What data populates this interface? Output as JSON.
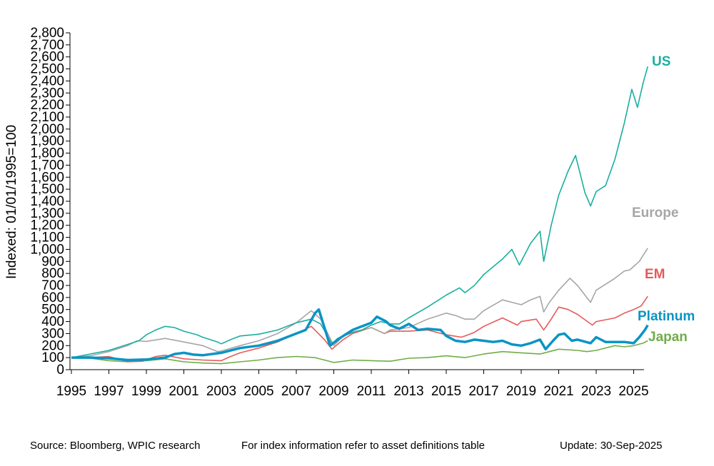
{
  "chart_data": {
    "type": "line",
    "title": "",
    "ylabel": "Indexed: 01/01/1995=100",
    "xlabel": "",
    "xlim": [
      1995,
      2025.75
    ],
    "ylim": [
      0,
      2800
    ],
    "y_ticks": [
      0,
      100,
      200,
      300,
      400,
      500,
      600,
      700,
      800,
      900,
      1000,
      1100,
      1200,
      1300,
      1400,
      1500,
      1600,
      1700,
      1800,
      1900,
      2000,
      2100,
      2200,
      2300,
      2400,
      2500,
      2600,
      2700,
      2800
    ],
    "y_tick_labels": [
      "0",
      "100",
      "200",
      "300",
      "400",
      "500",
      "600",
      "700",
      "800",
      "900",
      "1,000",
      "1,100",
      "1,200",
      "1,300",
      "1,400",
      "1,500",
      "1,600",
      "1,700",
      "1,800",
      "1,900",
      "2,000",
      "2,100",
      "2,200",
      "2,300",
      "2,400",
      "2,500",
      "2,600",
      "2,700",
      "2,800"
    ],
    "x_ticks": [
      1995,
      1997,
      1999,
      2001,
      2003,
      2005,
      2007,
      2009,
      2011,
      2013,
      2015,
      2017,
      2019,
      2021,
      2023,
      2025
    ],
    "x_tick_labels": [
      "1995",
      "1997",
      "1999",
      "2001",
      "2003",
      "2005",
      "2007",
      "2009",
      "2011",
      "2013",
      "2015",
      "2017",
      "2019",
      "2021",
      "2023",
      "2025"
    ],
    "grid": false,
    "legend": "inline labels at series ends",
    "series": [
      {
        "name": "US",
        "color": "#1aaea1",
        "points": [
          [
            1995,
            100
          ],
          [
            1996,
            130
          ],
          [
            1997,
            160
          ],
          [
            1998,
            210
          ],
          [
            1998.6,
            240
          ],
          [
            1999,
            290
          ],
          [
            1999.5,
            330
          ],
          [
            2000,
            360
          ],
          [
            2000.5,
            350
          ],
          [
            2001,
            320
          ],
          [
            2001.7,
            290
          ],
          [
            2002,
            270
          ],
          [
            2002.8,
            230
          ],
          [
            2003,
            215
          ],
          [
            2003.5,
            250
          ],
          [
            2004,
            280
          ],
          [
            2005,
            295
          ],
          [
            2006,
            330
          ],
          [
            2007,
            390
          ],
          [
            2007.8,
            420
          ],
          [
            2008.3,
            380
          ],
          [
            2008.9,
            215
          ],
          [
            2009.2,
            260
          ],
          [
            2010,
            310
          ],
          [
            2010.5,
            330
          ],
          [
            2011,
            370
          ],
          [
            2011.5,
            400
          ],
          [
            2012,
            380
          ],
          [
            2012.5,
            380
          ],
          [
            2013,
            430
          ],
          [
            2014,
            520
          ],
          [
            2015,
            620
          ],
          [
            2015.7,
            680
          ],
          [
            2016,
            640
          ],
          [
            2016.5,
            700
          ],
          [
            2017,
            790
          ],
          [
            2018,
            920
          ],
          [
            2018.5,
            1000
          ],
          [
            2018.9,
            870
          ],
          [
            2019.5,
            1050
          ],
          [
            2020,
            1150
          ],
          [
            2020.2,
            900
          ],
          [
            2020.6,
            1200
          ],
          [
            2021,
            1450
          ],
          [
            2021.5,
            1650
          ],
          [
            2021.9,
            1780
          ],
          [
            2022.4,
            1470
          ],
          [
            2022.7,
            1360
          ],
          [
            2023,
            1480
          ],
          [
            2023.5,
            1530
          ],
          [
            2024,
            1750
          ],
          [
            2024.5,
            2050
          ],
          [
            2024.9,
            2330
          ],
          [
            2025.2,
            2180
          ],
          [
            2025.5,
            2380
          ],
          [
            2025.75,
            2520
          ]
        ]
      },
      {
        "name": "Europe",
        "color": "#a6a6a6",
        "points": [
          [
            1995,
            100
          ],
          [
            1996,
            115
          ],
          [
            1997,
            150
          ],
          [
            1998,
            200
          ],
          [
            1998.5,
            240
          ],
          [
            1999,
            235
          ],
          [
            2000,
            260
          ],
          [
            2001,
            230
          ],
          [
            2002,
            200
          ],
          [
            2002.8,
            150
          ],
          [
            2003,
            155
          ],
          [
            2004,
            200
          ],
          [
            2005,
            240
          ],
          [
            2006,
            300
          ],
          [
            2007,
            390
          ],
          [
            2007.8,
            490
          ],
          [
            2008.3,
            420
          ],
          [
            2009,
            200
          ],
          [
            2009.5,
            280
          ],
          [
            2010,
            310
          ],
          [
            2011,
            350
          ],
          [
            2011.7,
            300
          ],
          [
            2012,
            330
          ],
          [
            2013,
            350
          ],
          [
            2014,
            420
          ],
          [
            2015,
            470
          ],
          [
            2015.5,
            450
          ],
          [
            2016,
            420
          ],
          [
            2016.5,
            420
          ],
          [
            2017,
            490
          ],
          [
            2018,
            580
          ],
          [
            2018.5,
            560
          ],
          [
            2019,
            540
          ],
          [
            2019.5,
            580
          ],
          [
            2020,
            610
          ],
          [
            2020.2,
            480
          ],
          [
            2020.5,
            560
          ],
          [
            2021,
            660
          ],
          [
            2021.6,
            760
          ],
          [
            2022,
            700
          ],
          [
            2022.7,
            560
          ],
          [
            2023,
            660
          ],
          [
            2024,
            760
          ],
          [
            2024.5,
            820
          ],
          [
            2024.8,
            830
          ],
          [
            2025.3,
            900
          ],
          [
            2025.75,
            1010
          ]
        ]
      },
      {
        "name": "EM",
        "color": "#e65a5a",
        "points": [
          [
            1995,
            100
          ],
          [
            1996,
            100
          ],
          [
            1997,
            110
          ],
          [
            1998,
            65
          ],
          [
            1998.8,
            70
          ],
          [
            1999.5,
            110
          ],
          [
            2000,
            120
          ],
          [
            2001,
            90
          ],
          [
            2002,
            80
          ],
          [
            2003,
            75
          ],
          [
            2003.5,
            110
          ],
          [
            2004,
            140
          ],
          [
            2005,
            180
          ],
          [
            2006,
            230
          ],
          [
            2007,
            300
          ],
          [
            2007.8,
            360
          ],
          [
            2008.5,
            250
          ],
          [
            2008.9,
            170
          ],
          [
            2009.5,
            250
          ],
          [
            2010,
            300
          ],
          [
            2011,
            350
          ],
          [
            2011.7,
            300
          ],
          [
            2012,
            320
          ],
          [
            2013,
            320
          ],
          [
            2014,
            330
          ],
          [
            2015,
            290
          ],
          [
            2015.8,
            270
          ],
          [
            2016,
            280
          ],
          [
            2016.5,
            310
          ],
          [
            2017,
            360
          ],
          [
            2018,
            430
          ],
          [
            2018.8,
            370
          ],
          [
            2019,
            400
          ],
          [
            2019.8,
            420
          ],
          [
            2020.2,
            330
          ],
          [
            2020.6,
            420
          ],
          [
            2021,
            520
          ],
          [
            2021.5,
            500
          ],
          [
            2022,
            460
          ],
          [
            2022.8,
            370
          ],
          [
            2023,
            400
          ],
          [
            2024,
            430
          ],
          [
            2024.5,
            470
          ],
          [
            2025,
            500
          ],
          [
            2025.4,
            530
          ],
          [
            2025.75,
            610
          ]
        ]
      },
      {
        "name": "Platinum",
        "color": "#0a94c4",
        "points": [
          [
            1995,
            100
          ],
          [
            1996,
            100
          ],
          [
            1997,
            95
          ],
          [
            1998,
            80
          ],
          [
            1999,
            85
          ],
          [
            2000,
            100
          ],
          [
            2000.5,
            130
          ],
          [
            2001,
            140
          ],
          [
            2001.5,
            125
          ],
          [
            2002,
            120
          ],
          [
            2003,
            140
          ],
          [
            2004,
            180
          ],
          [
            2005,
            200
          ],
          [
            2006,
            240
          ],
          [
            2007,
            300
          ],
          [
            2007.5,
            330
          ],
          [
            2008,
            470
          ],
          [
            2008.2,
            500
          ],
          [
            2008.5,
            350
          ],
          [
            2008.8,
            200
          ],
          [
            2009.3,
            260
          ],
          [
            2010,
            330
          ],
          [
            2010.5,
            360
          ],
          [
            2011,
            390
          ],
          [
            2011.3,
            440
          ],
          [
            2011.8,
            400
          ],
          [
            2012,
            370
          ],
          [
            2012.5,
            340
          ],
          [
            2013,
            380
          ],
          [
            2013.5,
            330
          ],
          [
            2014,
            340
          ],
          [
            2014.7,
            330
          ],
          [
            2015,
            280
          ],
          [
            2015.5,
            240
          ],
          [
            2016,
            230
          ],
          [
            2016.5,
            250
          ],
          [
            2017,
            240
          ],
          [
            2017.5,
            230
          ],
          [
            2018,
            240
          ],
          [
            2018.5,
            210
          ],
          [
            2019,
            200
          ],
          [
            2019.5,
            220
          ],
          [
            2020,
            250
          ],
          [
            2020.3,
            170
          ],
          [
            2020.7,
            240
          ],
          [
            2021,
            290
          ],
          [
            2021.3,
            300
          ],
          [
            2021.7,
            240
          ],
          [
            2022,
            250
          ],
          [
            2022.7,
            220
          ],
          [
            2023,
            270
          ],
          [
            2023.5,
            230
          ],
          [
            2024,
            230
          ],
          [
            2024.5,
            230
          ],
          [
            2025,
            220
          ],
          [
            2025.3,
            270
          ],
          [
            2025.6,
            330
          ],
          [
            2025.75,
            370
          ]
        ]
      },
      {
        "name": "Japan",
        "color": "#70ad47",
        "points": [
          [
            1995,
            100
          ],
          [
            1996,
            95
          ],
          [
            1997,
            75
          ],
          [
            1998,
            65
          ],
          [
            1999,
            75
          ],
          [
            2000,
            90
          ],
          [
            2001,
            65
          ],
          [
            2002,
            55
          ],
          [
            2003,
            50
          ],
          [
            2004,
            65
          ],
          [
            2005,
            80
          ],
          [
            2006,
            100
          ],
          [
            2007,
            110
          ],
          [
            2008,
            100
          ],
          [
            2009,
            60
          ],
          [
            2010,
            80
          ],
          [
            2011,
            75
          ],
          [
            2012,
            70
          ],
          [
            2013,
            95
          ],
          [
            2014,
            100
          ],
          [
            2015,
            115
          ],
          [
            2016,
            100
          ],
          [
            2017,
            130
          ],
          [
            2018,
            150
          ],
          [
            2019,
            140
          ],
          [
            2020,
            130
          ],
          [
            2021,
            170
          ],
          [
            2022,
            160
          ],
          [
            2022.5,
            150
          ],
          [
            2023,
            160
          ],
          [
            2024,
            200
          ],
          [
            2024.5,
            190
          ],
          [
            2025,
            200
          ],
          [
            2025.5,
            220
          ],
          [
            2025.75,
            240
          ]
        ]
      }
    ]
  },
  "footer": {
    "source": "Source: Bloomberg, WPIC research",
    "note": "For index information refer to asset definitions table",
    "update": "Update: 30-Sep-2025"
  }
}
